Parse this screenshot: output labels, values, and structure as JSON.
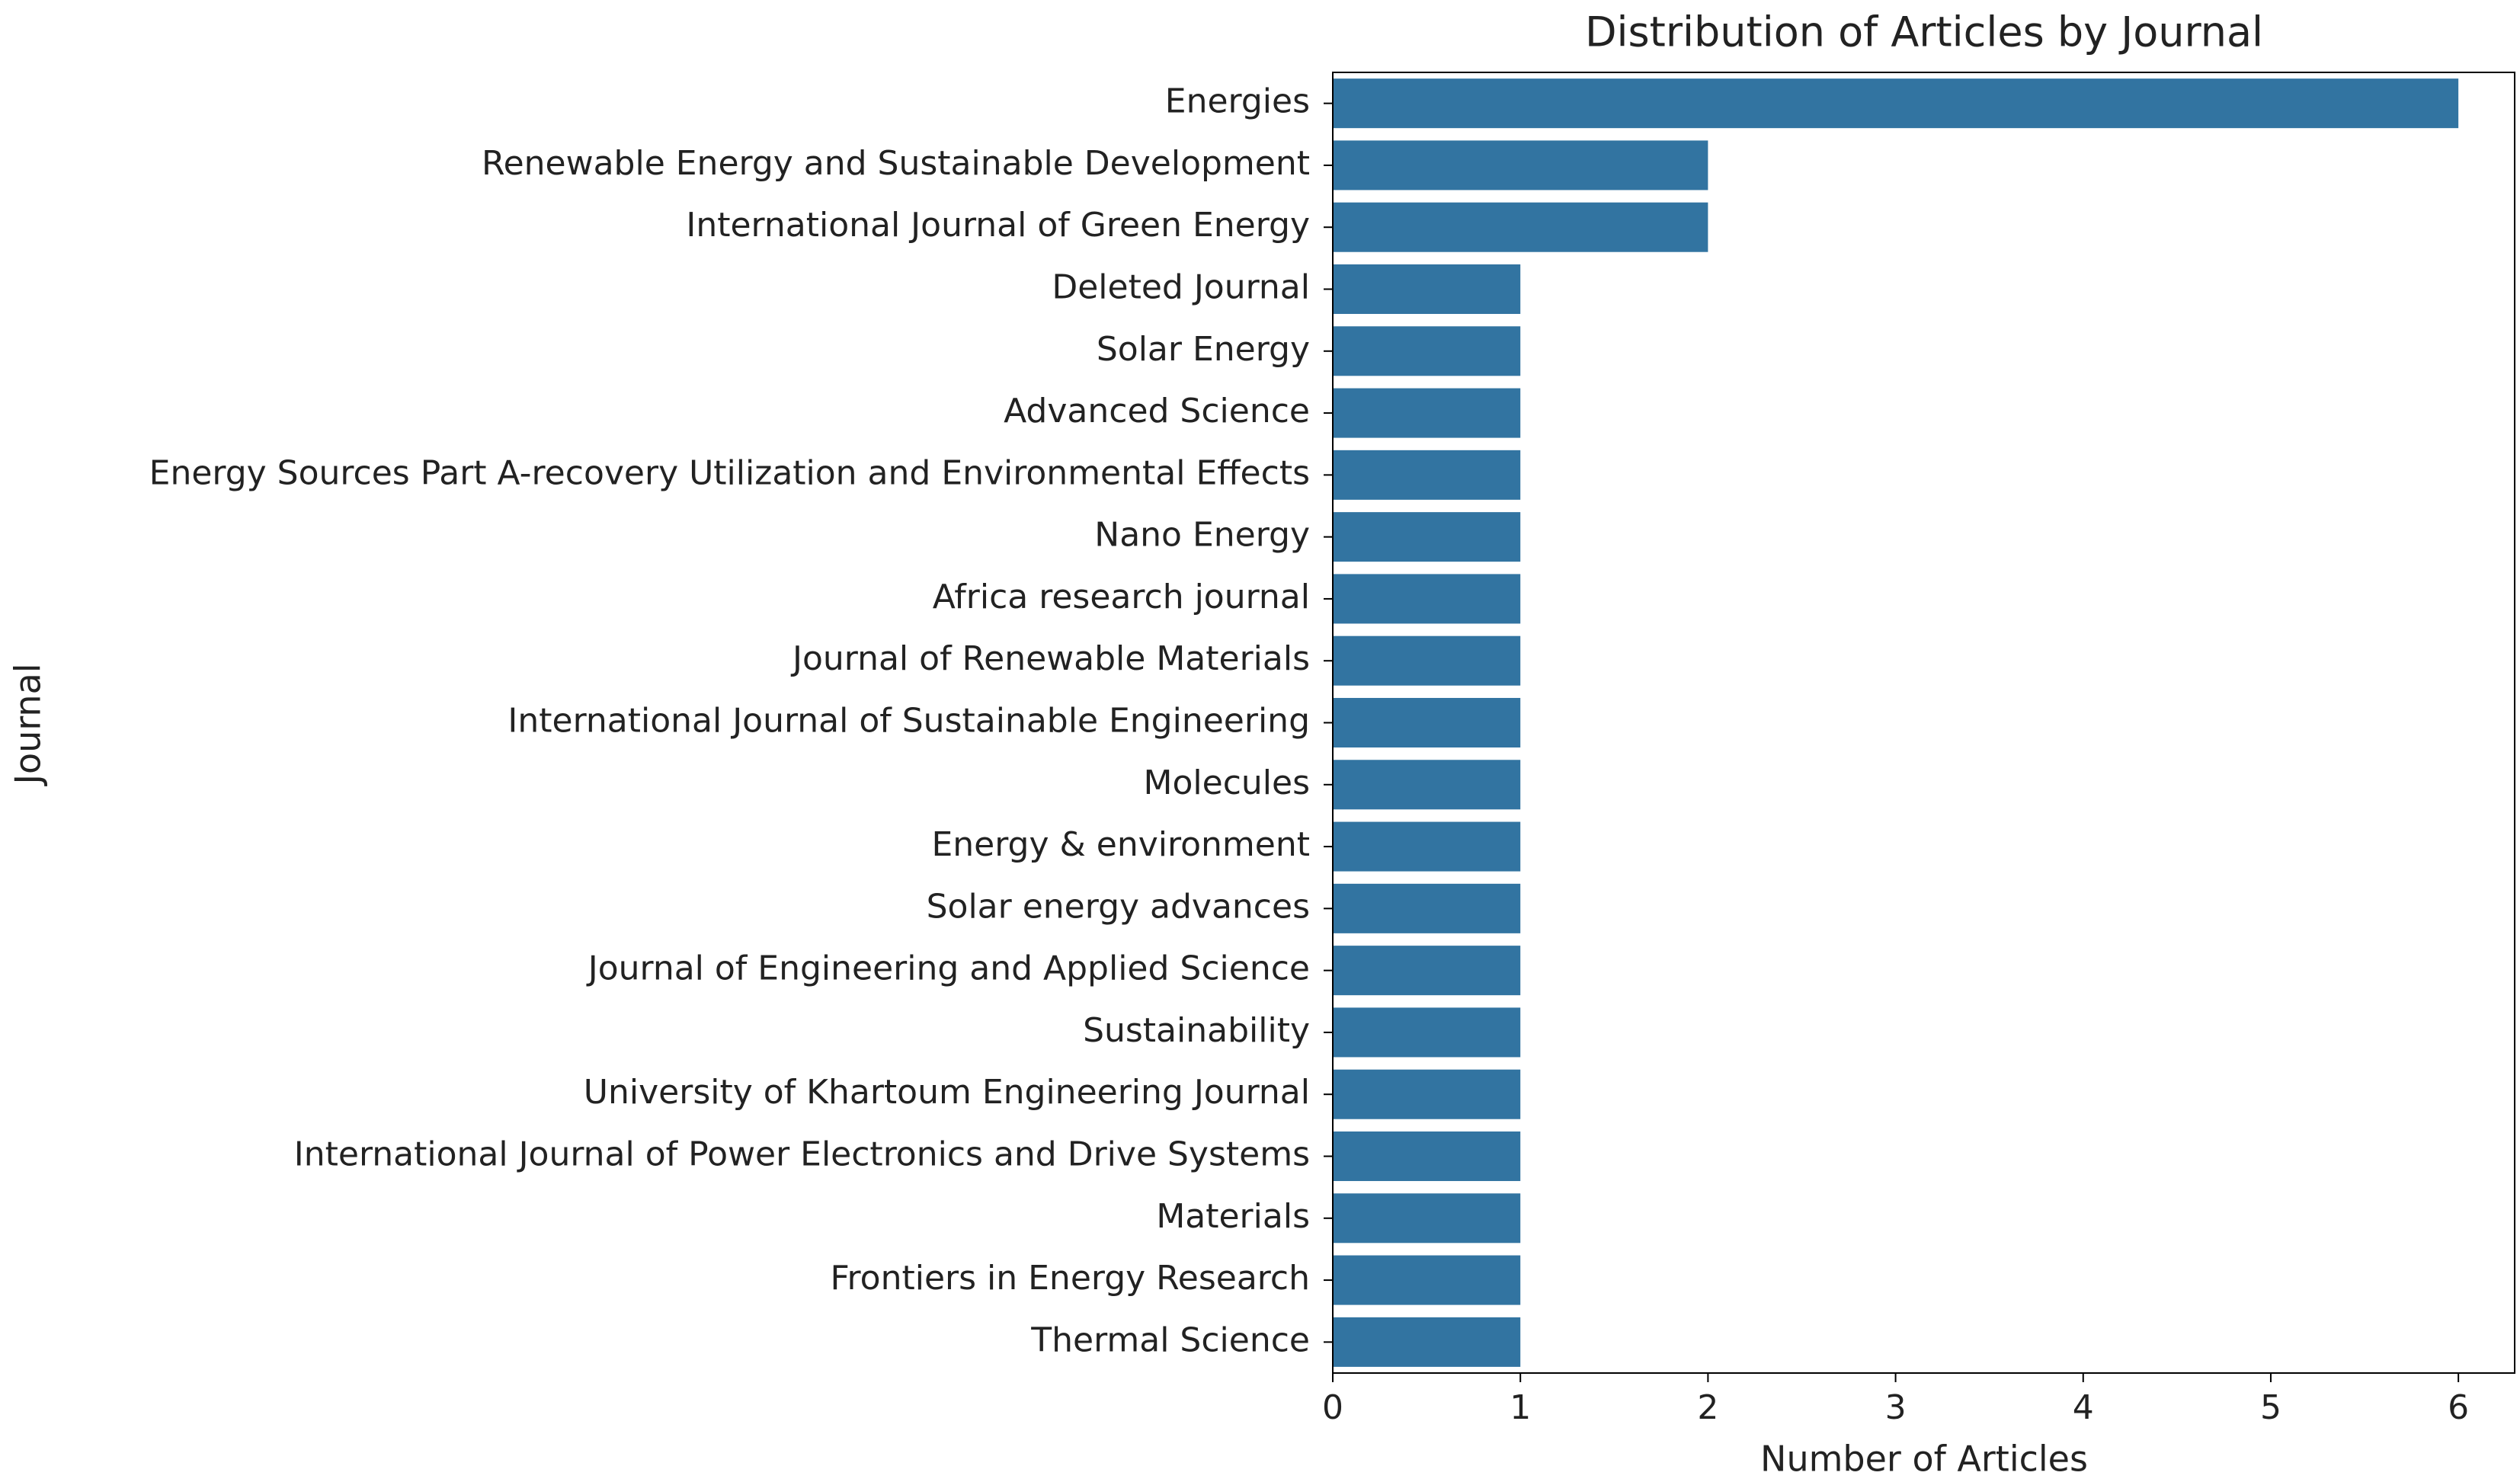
{
  "chart_data": {
    "type": "barh",
    "title": "Distribution of Articles by Journal",
    "x_label": "Number of Articles",
    "y_label": "Journal",
    "categories": [
      "Energies",
      "Renewable Energy and Sustainable Development",
      "International Journal of Green Energy",
      "Deleted Journal",
      "Solar Energy",
      "Advanced Science",
      "Energy Sources Part A-recovery Utilization and Environmental Effects",
      "Nano Energy",
      "Africa research journal",
      "Journal of Renewable Materials",
      "International Journal of Sustainable Engineering",
      "Molecules",
      "Energy & environment",
      "Solar energy advances",
      "Journal of Engineering and Applied Science",
      "Sustainability",
      "University of Khartoum Engineering Journal",
      "International Journal of Power Electronics and Drive Systems",
      "Materials",
      "Frontiers in Energy Research",
      "Thermal Science"
    ],
    "values": [
      6,
      2,
      2,
      1,
      1,
      1,
      1,
      1,
      1,
      1,
      1,
      1,
      1,
      1,
      1,
      1,
      1,
      1,
      1,
      1,
      1
    ],
    "color": "#3274a1",
    "xlim": [
      0,
      6.3
    ],
    "xticks": [
      0,
      1,
      2,
      3,
      4,
      5,
      6
    ],
    "grid": false
  }
}
